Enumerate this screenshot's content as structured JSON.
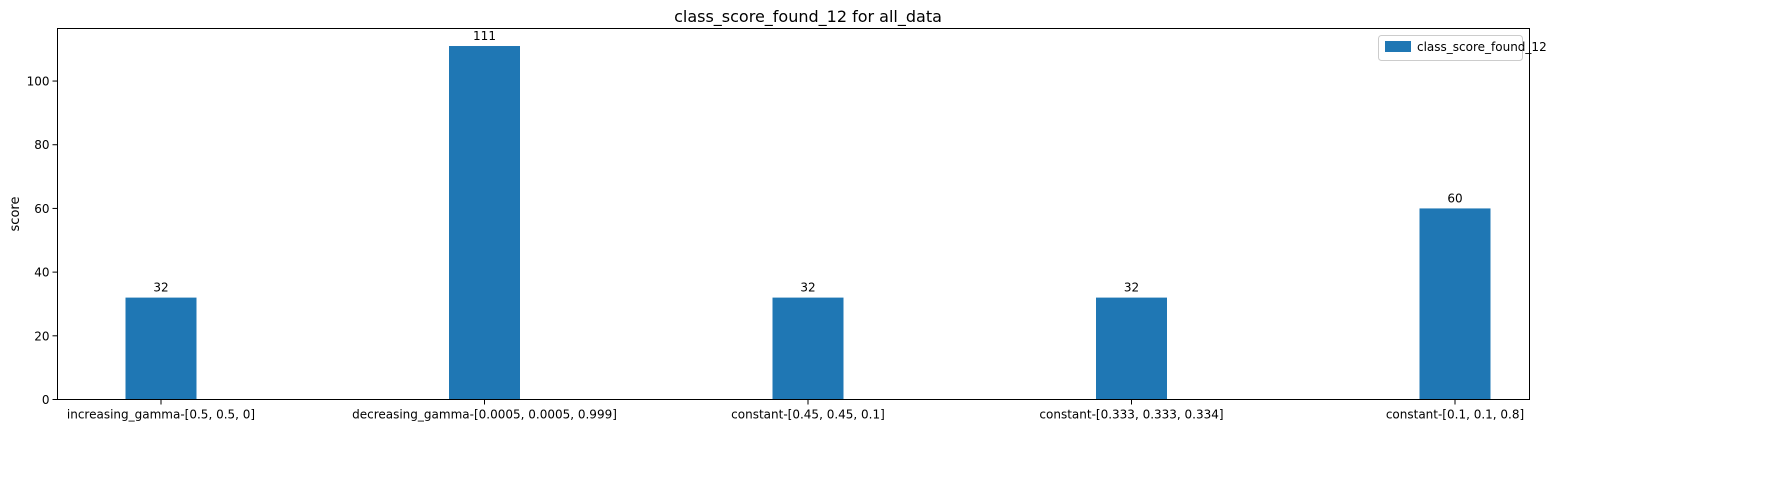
{
  "chart_data": {
    "type": "bar",
    "title": "class_score_found_12 for all_data",
    "xlabel": "",
    "ylabel": "score",
    "categories": [
      "increasing_gamma-[0.5, 0.5, 0]",
      "decreasing_gamma-[0.0005, 0.0005, 0.999]",
      "constant-[0.45, 0.45, 0.1]",
      "constant-[0.333, 0.333, 0.334]",
      "constant-[0.1, 0.1, 0.8]"
    ],
    "series": [
      {
        "name": "class_score_found_12",
        "values": [
          32,
          111,
          32,
          32,
          60
        ],
        "color": "#1f77b4"
      }
    ],
    "data_labels": [
      "32",
      "111",
      "32",
      "32",
      "60"
    ],
    "ylim": [
      0,
      116.5
    ],
    "yticks": [
      0,
      20,
      40,
      60,
      80,
      100
    ],
    "ytick_labels": [
      "0",
      "20",
      "40",
      "60",
      "80",
      "100"
    ],
    "grid": false,
    "legend": "top-right"
  }
}
